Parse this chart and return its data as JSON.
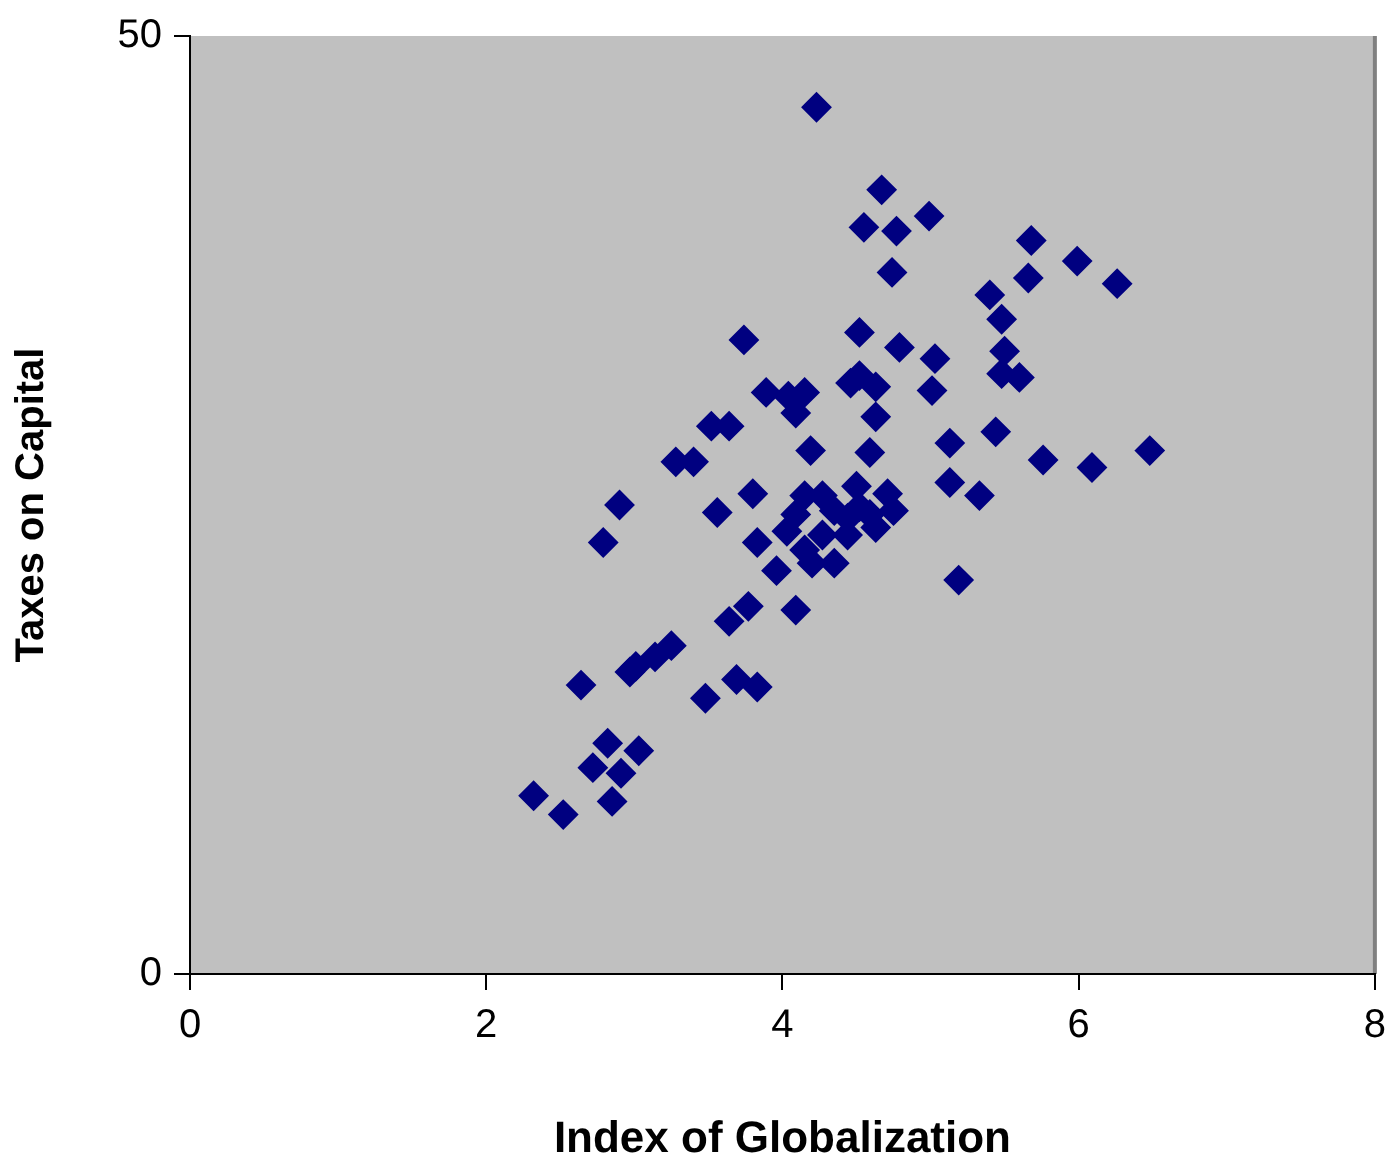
{
  "chart_data": {
    "type": "scatter",
    "xlabel": "Index of Globalization",
    "ylabel": "Taxes on Capital",
    "xlim": [
      0,
      8
    ],
    "xticks": [
      0,
      2,
      4,
      6,
      8
    ],
    "ylim": [
      0,
      50
    ],
    "yticks": [
      0,
      50
    ],
    "grid": false,
    "legend": false,
    "marker": "diamond",
    "series": [
      {
        "color": "#000080",
        "x": [
          4.23,
          4.67,
          4.55,
          4.77,
          4.99,
          5.68,
          4.74,
          5.99,
          6.26,
          5.66,
          5.4,
          5.48,
          4.52,
          3.74,
          4.79,
          3.89,
          4.04,
          4.15,
          4.09,
          4.46,
          4.52,
          4.63,
          5.03,
          5.01,
          5.5,
          5.6,
          4.63,
          4.59,
          4.19,
          3.52,
          3.64,
          3.4,
          3.28,
          2.9,
          2.79,
          3.8,
          3.56,
          3.83,
          4.03,
          4.09,
          4.15,
          4.27,
          4.35,
          4.5,
          4.59,
          4.71,
          4.75,
          4.63,
          4.44,
          4.2,
          4.15,
          4.35,
          3.96,
          4.09,
          3.77,
          3.64,
          5.13,
          5.13,
          5.33,
          5.76,
          6.09,
          6.48,
          5.19,
          5.44,
          5.48,
          3.25,
          3.14,
          3.01,
          2.64,
          2.97,
          3.48,
          3.69,
          3.83,
          2.32,
          2.52,
          2.85,
          2.82,
          2.72,
          2.91,
          3.03,
          4.52,
          4.44,
          4.27
        ],
        "values": [
          46.2,
          41.8,
          39.8,
          39.6,
          40.4,
          39.1,
          37.4,
          38.0,
          36.8,
          37.1,
          36.2,
          34.9,
          34.2,
          33.8,
          33.4,
          31.0,
          30.8,
          31.0,
          29.9,
          31.5,
          31.9,
          31.3,
          32.8,
          31.1,
          33.2,
          31.8,
          29.7,
          27.8,
          27.9,
          29.2,
          29.2,
          27.3,
          27.3,
          25.0,
          23.0,
          25.6,
          24.6,
          23.0,
          23.6,
          24.5,
          25.5,
          25.5,
          24.7,
          26.0,
          24.5,
          25.6,
          24.7,
          23.8,
          23.4,
          21.9,
          22.6,
          21.9,
          21.5,
          19.4,
          19.6,
          18.8,
          28.3,
          26.2,
          25.5,
          27.4,
          27.0,
          27.9,
          21.0,
          28.9,
          32.0,
          17.5,
          16.9,
          16.4,
          15.4,
          16.1,
          14.7,
          15.7,
          15.3,
          9.5,
          8.5,
          9.2,
          12.3,
          11.0,
          10.7,
          11.9,
          24.9,
          24.3,
          23.4
        ]
      }
    ]
  }
}
